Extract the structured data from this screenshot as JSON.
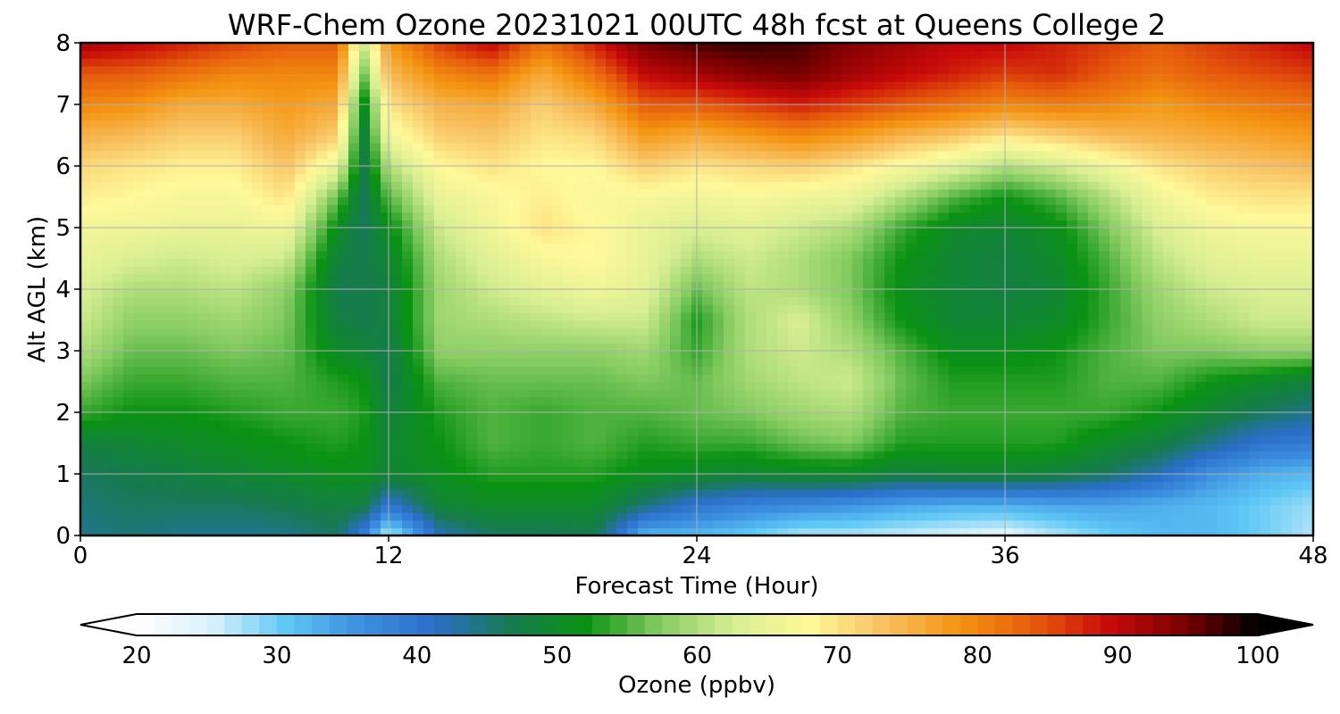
{
  "chart_data": {
    "type": "heatmap",
    "title": "WRF-Chem Ozone  20231021 00UTC 48h fcst at Queens College 2",
    "xlabel": "Forecast Time (Hour)",
    "ylabel": "Alt AGL (km)",
    "xlim": [
      0,
      48
    ],
    "ylim": [
      0,
      8
    ],
    "x_ticks": [
      "0",
      "12",
      "24",
      "36",
      "48"
    ],
    "y_ticks": [
      "0",
      "1",
      "2",
      "3",
      "4",
      "5",
      "6",
      "7",
      "8"
    ],
    "grid": true,
    "colorbar": {
      "label": "Ozone  (ppbv)",
      "range": [
        20,
        100
      ],
      "ticks": [
        "20",
        "30",
        "40",
        "50",
        "60",
        "70",
        "80",
        "90",
        "100"
      ],
      "extend": "both",
      "colors": [
        "#ffffff",
        "#d9f2fb",
        "#5ec8f5",
        "#3d8fe0",
        "#2a6ec8",
        "#177a50",
        "#0a9212",
        "#86cc62",
        "#d8ee92",
        "#fff99a",
        "#f8c060",
        "#f49512",
        "#e65c0c",
        "#c80a0a",
        "#7c0000",
        "#000000"
      ]
    },
    "x": [
      0,
      2,
      4,
      6,
      8,
      10,
      11,
      12,
      14,
      16,
      18,
      20,
      22,
      24,
      26,
      28,
      30,
      32,
      34,
      36,
      38,
      40,
      42,
      44,
      46,
      48
    ],
    "y": [
      0,
      0.5,
      1,
      1.5,
      2,
      2.5,
      3,
      3.5,
      4,
      4.5,
      5,
      5.5,
      6,
      6.5,
      7,
      7.5,
      8
    ],
    "z": [
      [
        44,
        45,
        46,
        48,
        54,
        57,
        60,
        62,
        63,
        65,
        66,
        69,
        71,
        75,
        80,
        84,
        92
      ],
      [
        45,
        46,
        47,
        49,
        52,
        54,
        56,
        58,
        60,
        63,
        66,
        68,
        70,
        74,
        79,
        84,
        90
      ],
      [
        44,
        46,
        48,
        50,
        52,
        54,
        56,
        58,
        60,
        62,
        65,
        67,
        69,
        72,
        76,
        82,
        88
      ],
      [
        44,
        46,
        49,
        51,
        53,
        55,
        57,
        59,
        61,
        63,
        65,
        67,
        69,
        72,
        76,
        80,
        86
      ],
      [
        44,
        47,
        50,
        52,
        54,
        55,
        56,
        57,
        58,
        62,
        66,
        70,
        73,
        76,
        78,
        80,
        84
      ],
      [
        46,
        48,
        51,
        53,
        54,
        53,
        50,
        48,
        47,
        48,
        51,
        56,
        65,
        72,
        76,
        80,
        84
      ],
      [
        38,
        48,
        51,
        52,
        53,
        52,
        49,
        47,
        47,
        47,
        46,
        46,
        47,
        48,
        50,
        56,
        62
      ],
      [
        26,
        40,
        49,
        49,
        48,
        47,
        47,
        48,
        48,
        49,
        51,
        55,
        60,
        66,
        70,
        74,
        78
      ],
      [
        42,
        49,
        51,
        52,
        53,
        55,
        58,
        59,
        59,
        60,
        62,
        65,
        68,
        72,
        75,
        80,
        86
      ],
      [
        46,
        50,
        53,
        55,
        55,
        56,
        58,
        60,
        62,
        64,
        66,
        67,
        70,
        73,
        76,
        82,
        90
      ],
      [
        46,
        50,
        53,
        54,
        54,
        56,
        58,
        61,
        64,
        67,
        70,
        69,
        68,
        70,
        72,
        76,
        82
      ],
      [
        47,
        50,
        53,
        55,
        55,
        56,
        58,
        62,
        66,
        68,
        68,
        67,
        68,
        71,
        76,
        82,
        88
      ],
      [
        32,
        45,
        51,
        53,
        55,
        57,
        59,
        62,
        64,
        65,
        65,
        67,
        72,
        78,
        84,
        90,
        95
      ],
      [
        32,
        40,
        50,
        54,
        56,
        56,
        54,
        53,
        56,
        60,
        63,
        66,
        70,
        76,
        84,
        92,
        97
      ],
      [
        30,
        38,
        49,
        54,
        57,
        59,
        60,
        60,
        61,
        62,
        64,
        67,
        71,
        78,
        86,
        94,
        98
      ],
      [
        27,
        37,
        50,
        56,
        59,
        61,
        62,
        63,
        60,
        60,
        62,
        66,
        72,
        80,
        88,
        95,
        97
      ],
      [
        27,
        36,
        50,
        57,
        60,
        62,
        60,
        58,
        57,
        57,
        60,
        65,
        70,
        78,
        86,
        92,
        94
      ],
      [
        26,
        34,
        48,
        53,
        55,
        56,
        55,
        52,
        51,
        52,
        54,
        60,
        67,
        75,
        84,
        90,
        92
      ],
      [
        25,
        33,
        49,
        53,
        54,
        53,
        51,
        49,
        49,
        49,
        50,
        55,
        64,
        73,
        82,
        88,
        90
      ],
      [
        24,
        33,
        49,
        53,
        54,
        53,
        51,
        49,
        48,
        48,
        49,
        52,
        60,
        70,
        80,
        86,
        90
      ],
      [
        27,
        34,
        48,
        53,
        54,
        53,
        52,
        50,
        49,
        50,
        51,
        55,
        62,
        72,
        81,
        87,
        88
      ],
      [
        30,
        34,
        46,
        50,
        54,
        55,
        55,
        54,
        54,
        55,
        57,
        60,
        66,
        74,
        80,
        84,
        86
      ],
      [
        32,
        33,
        42,
        48,
        52,
        55,
        57,
        58,
        59,
        61,
        63,
        66,
        70,
        75,
        78,
        82,
        84
      ],
      [
        32,
        32,
        36,
        44,
        49,
        52,
        57,
        60,
        62,
        64,
        66,
        69,
        72,
        76,
        80,
        84,
        86
      ],
      [
        30,
        30,
        33,
        40,
        46,
        50,
        58,
        62,
        63,
        65,
        67,
        70,
        73,
        77,
        81,
        85,
        88
      ],
      [
        27,
        28,
        32,
        39,
        44,
        48,
        58,
        62,
        63,
        65,
        67,
        70,
        74,
        78,
        82,
        86,
        90
      ]
    ]
  }
}
